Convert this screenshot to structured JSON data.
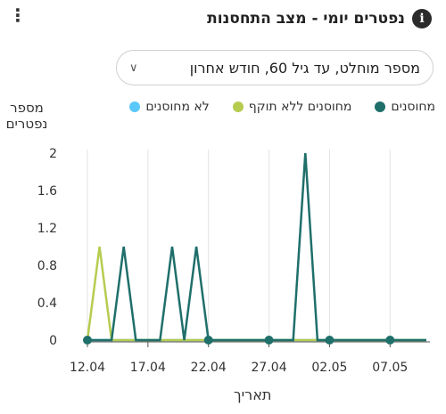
{
  "header": {
    "title": "נפטרים יומי - מצב התחסנות",
    "info_icon": "i"
  },
  "filter": {
    "selected": "מספר מוחלט, עד גיל 60, חודש אחרון"
  },
  "chart_data": {
    "type": "line",
    "title": "נפטרים יומי - מצב התחסנות",
    "ylabel": "מספר נפטרים",
    "xlabel": "תאריך",
    "ylim": [
      0,
      2
    ],
    "yticks": [
      "0",
      "0.4",
      "0.8",
      "1.2",
      "1.6",
      "2"
    ],
    "xticks": [
      "12.04",
      "17.04",
      "22.04",
      "27.04",
      "02.05",
      "07.05"
    ],
    "x": [
      "12.04",
      "13.04",
      "14.04",
      "15.04",
      "16.04",
      "17.04",
      "18.04",
      "19.04",
      "20.04",
      "21.04",
      "22.04",
      "23.04",
      "24.04",
      "25.04",
      "26.04",
      "27.04",
      "28.04",
      "29.04",
      "30.04",
      "01.05",
      "02.05",
      "03.05",
      "04.05",
      "05.05",
      "06.05",
      "07.05",
      "08.05",
      "09.05",
      "10.05"
    ],
    "legend": "top",
    "series": [
      {
        "name": "לא מחוסנים",
        "color": "#5ac8fa",
        "values": [
          0,
          0,
          0,
          0,
          0,
          0,
          0,
          0,
          0,
          0,
          0,
          0,
          0,
          0,
          0,
          0,
          0,
          0,
          0,
          0,
          0,
          0,
          0,
          0,
          0,
          0,
          0,
          0,
          0
        ]
      },
      {
        "name": "מחוסנים ללא תוקף",
        "color": "#b5cc4f",
        "values": [
          0,
          1,
          0,
          0,
          0,
          0,
          0,
          0,
          0,
          0,
          0,
          0,
          0,
          0,
          0,
          0,
          0,
          0,
          0,
          0,
          0,
          0,
          0,
          0,
          0,
          0,
          0,
          0,
          0
        ]
      },
      {
        "name": "מחוסנים",
        "color": "#1f6f6a",
        "values": [
          0,
          0,
          0,
          1,
          0,
          0,
          0,
          1,
          0,
          1,
          0,
          0,
          0,
          0,
          0,
          0,
          0,
          0,
          2,
          0,
          0,
          0,
          0,
          0,
          0,
          0,
          0,
          0,
          0
        ]
      }
    ],
    "markers_on": [
      "12.04",
      "22.04",
      "27.04",
      "02.05",
      "07.05"
    ]
  }
}
